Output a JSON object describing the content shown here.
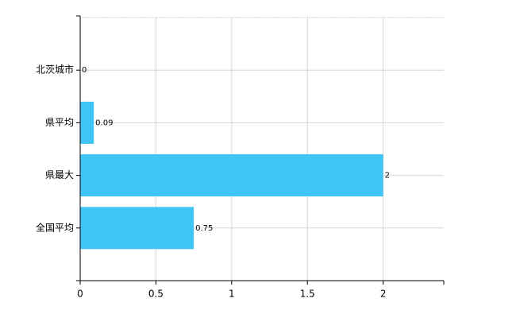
{
  "chart_data": {
    "type": "bar",
    "orientation": "horizontal",
    "categories": [
      "北茨城市",
      "県平均",
      "県最大",
      "全国平均"
    ],
    "values": [
      0,
      0.09,
      2,
      0.75
    ],
    "color": "#40c4f6",
    "xlim": [
      0,
      2.4
    ],
    "xticks": [
      0,
      0.5,
      1,
      1.5,
      2
    ],
    "grid": true
  }
}
